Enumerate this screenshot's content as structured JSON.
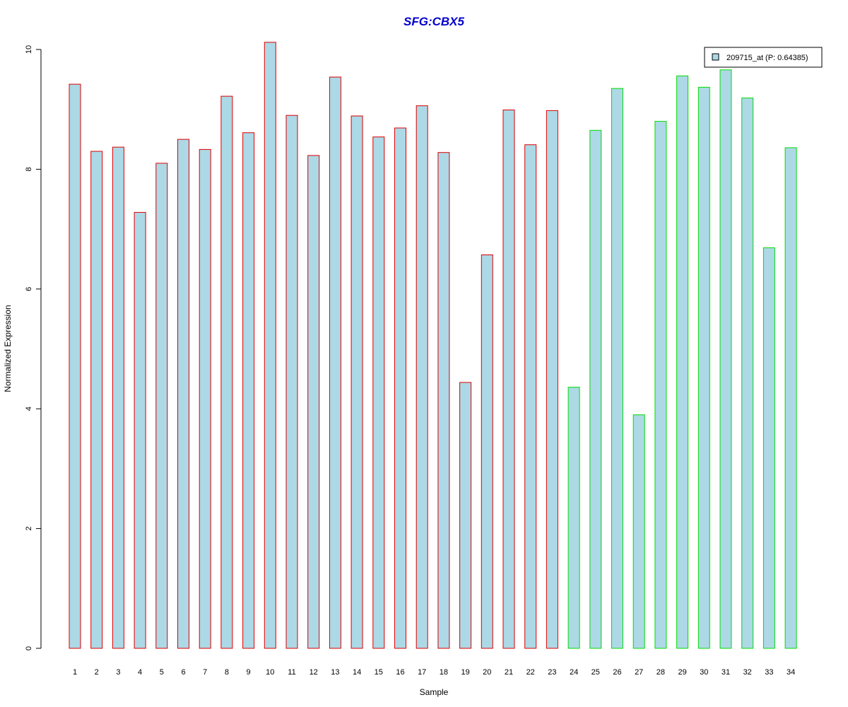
{
  "chart_data": {
    "type": "bar",
    "title": "SFG:CBX5",
    "xlabel": "Sample",
    "ylabel": "Normalized Expression",
    "ylim": [
      0,
      10
    ],
    "yticks": [
      0,
      2,
      4,
      6,
      8,
      10
    ],
    "categories": [
      "1",
      "2",
      "3",
      "4",
      "5",
      "6",
      "7",
      "8",
      "9",
      "10",
      "11",
      "12",
      "13",
      "14",
      "15",
      "16",
      "17",
      "18",
      "19",
      "20",
      "21",
      "22",
      "23",
      "24",
      "25",
      "26",
      "27",
      "28",
      "29",
      "30",
      "31",
      "32",
      "33",
      "34"
    ],
    "series": [
      {
        "name": "209715_at (P: 0.64385)",
        "values": [
          9.42,
          8.3,
          8.37,
          7.28,
          8.1,
          8.5,
          8.33,
          9.22,
          8.61,
          10.12,
          8.9,
          8.23,
          9.54,
          8.89,
          8.54,
          8.69,
          9.06,
          8.28,
          4.44,
          6.57,
          8.99,
          8.41,
          8.98,
          4.36,
          8.65,
          9.35,
          3.9,
          8.8,
          9.56,
          9.37,
          9.66,
          9.19,
          6.69,
          8.36
        ]
      }
    ],
    "groups": [
      {
        "range": [
          1,
          23
        ],
        "border_color": "#dd0000"
      },
      {
        "range": [
          24,
          34
        ],
        "border_color": "#00dd00"
      }
    ],
    "bar_fill": "#add8e6",
    "title_color": "#0000cc",
    "legend": {
      "entry": "209715_at (P: 0.64385)",
      "placement": "top-right"
    },
    "grid": false
  }
}
